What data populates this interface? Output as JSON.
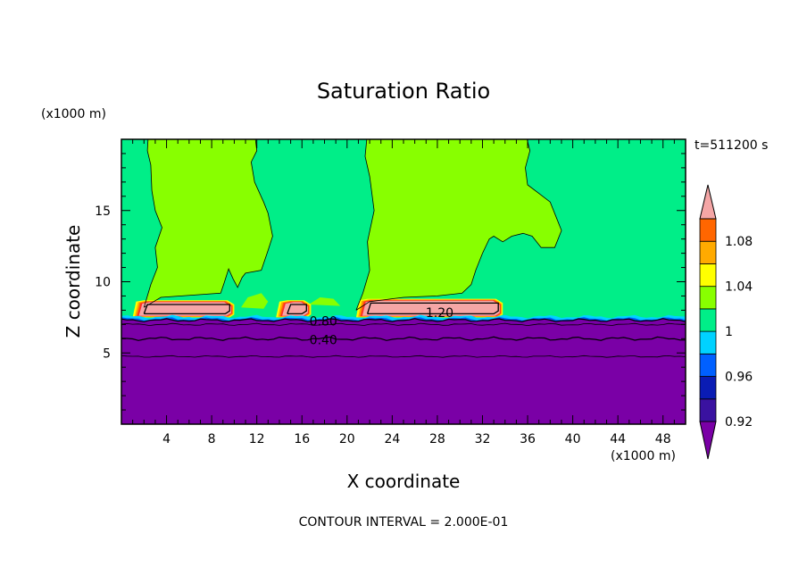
{
  "title": "Saturation Ratio",
  "z_unit_label": "(x1000 m)",
  "x_unit_label": "(x1000 m)",
  "time_label": "t=511200 s",
  "contour_interval_label": "CONTOUR INTERVAL = 2.000E-01",
  "chart_data": {
    "type": "heatmap",
    "title": "Saturation Ratio",
    "xlabel": "X coordinate",
    "ylabel": "Z coordinate",
    "xlim": [
      0,
      50
    ],
    "ylim": [
      0,
      20
    ],
    "x_ticks": [
      4,
      8,
      12,
      16,
      20,
      24,
      28,
      32,
      36,
      40,
      44,
      48
    ],
    "y_ticks": [
      5,
      10,
      15
    ],
    "colorbar": {
      "levels": [
        0.92,
        0.94,
        0.96,
        0.98,
        1.0,
        1.02,
        1.04,
        1.06,
        1.08,
        1.1
      ],
      "labels": [
        "0.92",
        "0.96",
        "1",
        "1.04",
        "1.08"
      ],
      "colors": [
        "#7a00a6",
        "#3a12a0",
        "#0a1cb4",
        "#0060ff",
        "#00d2ff",
        "#00ee88",
        "#88ff00",
        "#ffff00",
        "#ffaa00",
        "#ff6600",
        "#ff2a2a",
        "#f5a6a6"
      ]
    },
    "contour_labels": [
      {
        "text": "0.40",
        "x": 17.9,
        "z": 6.0
      },
      {
        "text": "0.80",
        "x": 17.9,
        "z": 7.3
      },
      {
        "text": "1.20",
        "x": 28.2,
        "z": 7.9
      }
    ],
    "regions": [
      {
        "name": "subsaturated-layer",
        "value": 0.4,
        "z_top": 7.4
      },
      {
        "name": "near-saturation-layer",
        "value": 0.99,
        "z_bottom": 7.4,
        "z_top": 20
      },
      {
        "name": "cloud-plume-1",
        "value": 1.01,
        "x_range": [
          2,
          12
        ]
      },
      {
        "name": "cloud-plume-2",
        "value": 1.01,
        "x_range": [
          21,
          39
        ]
      },
      {
        "name": "supersaturated-cell-1",
        "value": 1.2,
        "x_range": [
          2.5,
          9.5
        ],
        "z_range": [
          7.6,
          8.7
        ]
      },
      {
        "name": "supersaturated-cell-2",
        "value": 1.2,
        "x_range": [
          13.8,
          16.2
        ],
        "z_range": [
          7.6,
          8.7
        ]
      },
      {
        "name": "supersaturated-cell-3",
        "value": 1.2,
        "x_range": [
          21.8,
          33.5
        ],
        "z_range": [
          7.6,
          8.7
        ]
      }
    ]
  }
}
